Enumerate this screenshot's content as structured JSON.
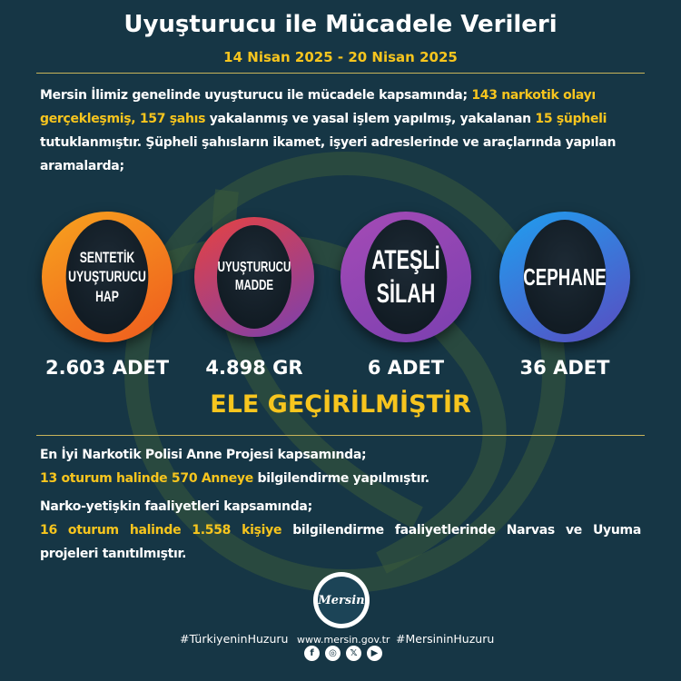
{
  "header": {
    "title": "Uyuşturucu ile Mücadele Verileri",
    "date_range": "14 Nisan 2025 - 20 Nisan 2025"
  },
  "intro": {
    "p1": "Mersin İlimiz genelinde uyuşturucu ile mücadele kapsamında; ",
    "h1": "143 narkotik olayı gerçekleşmiş, 157 şahıs",
    "p2": " yakalanmış ve yasal işlem yapılmış, yakalanan ",
    "h2": "15 şüpheli",
    "p3": " tutuklanmıştır. Şüpheli şahısların ikamet, işyeri adreslerinde ve araçlarında yapılan aramalarda;"
  },
  "items": [
    {
      "label_lines": [
        "SENTETİK",
        "UYUŞTURUCU",
        "HAP"
      ],
      "value": "2.603 ADET",
      "color": "#f7931e"
    },
    {
      "label_lines": [
        "UYUŞTURUCU",
        "MADDE"
      ],
      "value": "4.898 GR",
      "color": "#e8423f"
    },
    {
      "label_lines": [
        "ATEŞLİ",
        "SİLAH"
      ],
      "value": "6 ADET",
      "color": "#a54bb5"
    },
    {
      "label_lines": [
        "CEPHANE"
      ],
      "value": "36 ADET",
      "color": "#1e8de0"
    }
  ],
  "seized_text": "ELE GEÇİRİLMİŞTİR",
  "mother_project": {
    "line1": "En İyi Narkotik Polisi Anne Projesi kapsamında;",
    "highlight": "13 oturum halinde 570 Anneye",
    "rest": " bilgilendirme yapılmıştır."
  },
  "narko": {
    "line1": "Narko-yetişkin faaliyetleri kapsamında;",
    "highlight": "16 oturum halinde 1.558 kişiye",
    "rest": " bilgilendirme faaliyetlerinde Narvas ve Uyuma projeleri tanıtılmıştır."
  },
  "logo": {
    "text": "Mersin",
    "top": "TÜRKİYE CUMHURİYETİ",
    "bottom": "VALİLİĞİ"
  },
  "footer": {
    "hashtag_left": "#TürkiyeninHuzuru",
    "website": "www.mersin.gov.tr",
    "hashtag_right": "#MersininHuzuru",
    "social": [
      {
        "icon": "facebook-icon",
        "glyph": "f"
      },
      {
        "icon": "instagram-icon",
        "glyph": "◎"
      },
      {
        "icon": "x-icon",
        "glyph": "𝕏"
      },
      {
        "icon": "youtube-icon",
        "glyph": "▶"
      }
    ]
  },
  "colors": {
    "background": "#163645",
    "accent": "#f7c51e"
  }
}
